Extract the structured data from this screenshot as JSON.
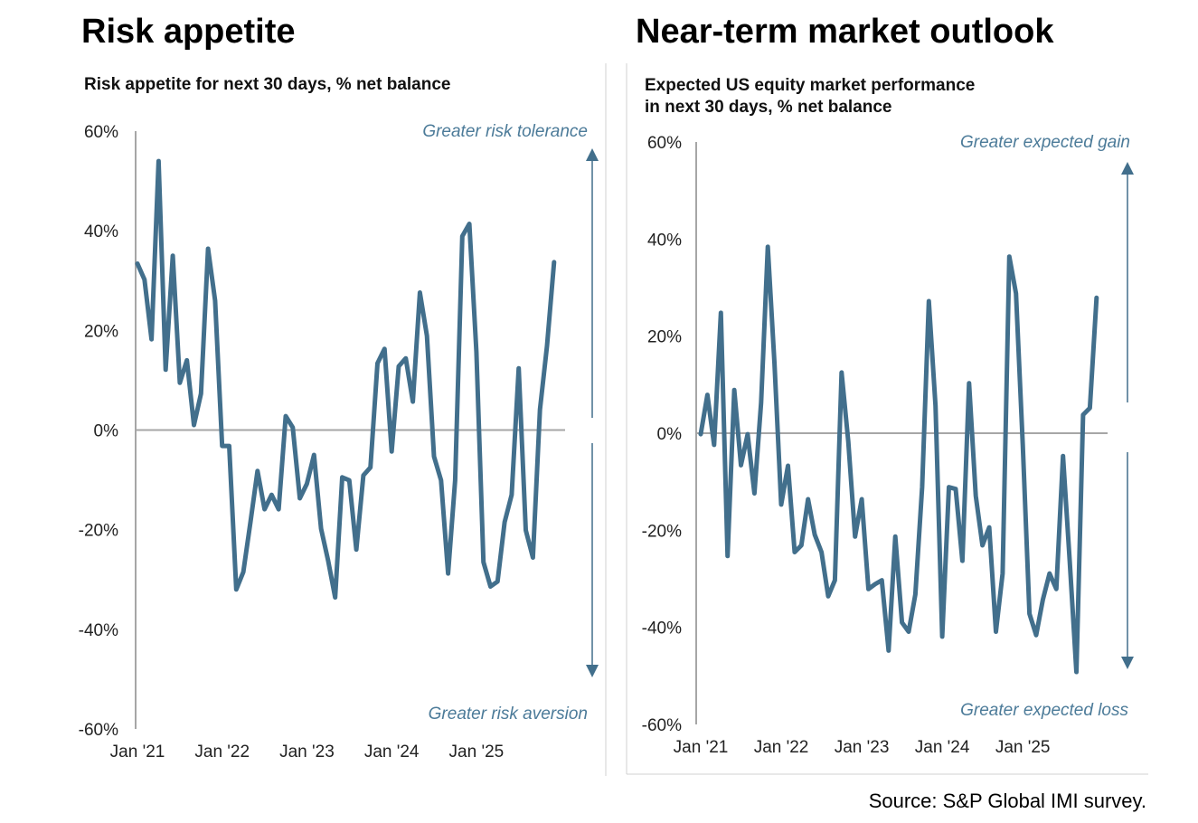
{
  "source": "Source: S&P Global IMI survey.",
  "colors": {
    "line": "#426f8c",
    "axis": "#a6a6a6",
    "annotation": "#4c7b99"
  },
  "chart_data": [
    {
      "type": "line",
      "title": "Risk appetite",
      "subtitle": "Risk appetite for next 30 days, % net balance",
      "annotation_top": "Greater risk tolerance",
      "annotation_bottom": "Greater risk aversion",
      "xlabel": "",
      "ylabel": "% net balance",
      "ylim": [
        -60,
        60
      ],
      "yticks": [
        "60%",
        "40%",
        "20%",
        "0%",
        "-20%",
        "-40%",
        "-60%"
      ],
      "ytick_values": [
        60,
        40,
        20,
        0,
        -20,
        -40,
        -60
      ],
      "xticks": [
        "Jan '21",
        "Jan '22",
        "Jan '23",
        "Jan '24",
        "Jan '25"
      ],
      "x_start": "Jan 2021",
      "x_frequency": "monthly",
      "grid": false,
      "values": [
        33.4,
        30.2,
        18.2,
        54.0,
        12.1,
        35.0,
        9.5,
        14.0,
        1.0,
        7.3,
        36.4,
        26.0,
        -3.2,
        -3.2,
        -32.0,
        -28.5,
        -18.5,
        -8.2,
        -15.9,
        -13.0,
        -15.9,
        2.8,
        0.5,
        -13.7,
        -10.8,
        -5.0,
        -19.8,
        -26.2,
        -33.6,
        -9.5,
        -10.1,
        -24.0,
        -9.1,
        -7.5,
        13.4,
        16.3,
        -4.3,
        12.8,
        14.4,
        5.7,
        27.6,
        18.9,
        -5.3,
        -10.1,
        -28.8,
        -10.1,
        38.9,
        41.4,
        15.7,
        -26.5,
        -31.4,
        -30.4,
        -18.5,
        -13.0,
        12.4,
        -20.1,
        -25.6,
        4.1,
        16.9,
        33.7
      ]
    },
    {
      "type": "line",
      "title": "Near-term market outlook",
      "subtitle": "Expected US equity market performance",
      "subtitle2": "in next 30 days, % net balance",
      "annotation_top": "Greater expected gain",
      "annotation_bottom": "Greater  expected loss",
      "xlabel": "",
      "ylabel": "% net balance",
      "ylim": [
        -60,
        60
      ],
      "yticks": [
        "60%",
        "40%",
        "20%",
        "0%",
        "-20%",
        "-40%",
        "-60%"
      ],
      "ytick_values": [
        60,
        40,
        20,
        0,
        -20,
        -40,
        -60
      ],
      "xticks": [
        "Jan '21",
        "Jan '22",
        "Jan '23",
        "Jan '24",
        "Jan '25"
      ],
      "x_start": "Jan 2021",
      "x_frequency": "monthly",
      "grid": false,
      "values": [
        -0.2,
        7.9,
        -2.4,
        24.8,
        -25.3,
        8.9,
        -6.6,
        -0.2,
        -12.4,
        6.3,
        38.4,
        14.3,
        -14.7,
        -6.7,
        -24.5,
        -23.1,
        -13.6,
        -20.9,
        -24.5,
        -33.6,
        -30.3,
        12.5,
        -1.7,
        -21.3,
        -13.6,
        -32.1,
        -31.1,
        -30.3,
        -44.8,
        -21.3,
        -39.0,
        -40.9,
        -33.2,
        -11.1,
        27.2,
        5.6,
        -41.9,
        -11.1,
        -11.5,
        -26.3,
        10.3,
        -12.9,
        -23.1,
        -19.4,
        -40.9,
        -28.9,
        36.4,
        28.8,
        -2.4,
        -37.2,
        -41.6,
        -34.3,
        -28.9,
        -32.1,
        -4.7,
        -26.3,
        -49.2,
        3.8,
        5.2,
        27.9
      ]
    }
  ]
}
